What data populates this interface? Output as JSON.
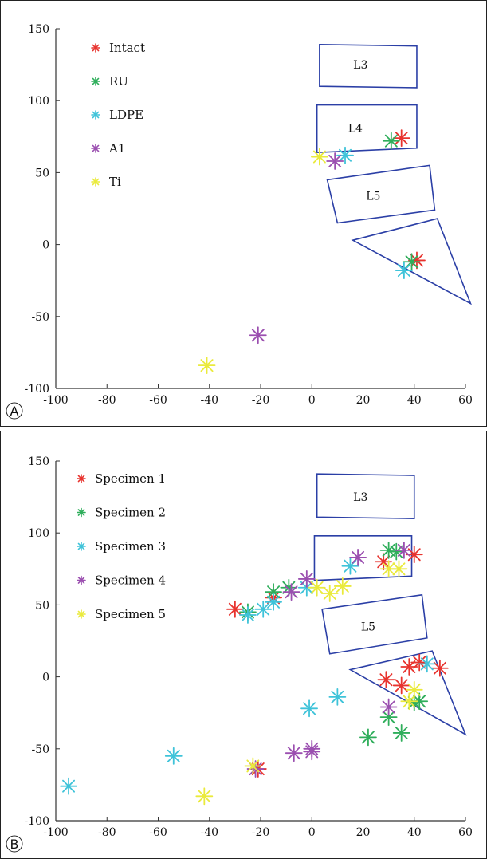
{
  "chart_data": [
    {
      "type": "scatter",
      "panel_label": "A",
      "xlim": [
        -100,
        60
      ],
      "ylim": [
        -100,
        150
      ],
      "xticks": [
        -100,
        -80,
        -60,
        -40,
        -20,
        0,
        20,
        40,
        60
      ],
      "yticks": [
        -100,
        -50,
        0,
        50,
        100,
        150
      ],
      "legend_placement": "top-left",
      "marker": "asterisk",
      "regions": [
        {
          "label": "L3",
          "polygon": [
            [
              3,
              139
            ],
            [
              41,
              138
            ],
            [
              41,
              109
            ],
            [
              3,
              110
            ]
          ],
          "label_at": [
            19,
            125
          ]
        },
        {
          "label": "L4",
          "polygon": [
            [
              2,
              97
            ],
            [
              41,
              97
            ],
            [
              41,
              67
            ],
            [
              2,
              64
            ]
          ],
          "label_at": [
            17,
            81
          ]
        },
        {
          "label": "L5",
          "polygon": [
            [
              6,
              45
            ],
            [
              46,
              55
            ],
            [
              48,
              24
            ],
            [
              10,
              15
            ]
          ],
          "label_at": [
            24,
            34
          ]
        },
        {
          "label": "",
          "polygon": [
            [
              16,
              3
            ],
            [
              49,
              18
            ],
            [
              62,
              -41
            ]
          ],
          "label_at": null
        }
      ],
      "series": [
        {
          "name": "Intact",
          "color": "#e8332e",
          "points": [
            [
              35,
              74
            ],
            [
              41,
              -11
            ]
          ]
        },
        {
          "name": "RU",
          "color": "#2fae5b",
          "points": [
            [
              31,
              72
            ],
            [
              39,
              -12
            ]
          ]
        },
        {
          "name": "LDPE",
          "color": "#3fc3d9",
          "points": [
            [
              13,
              62
            ],
            [
              36,
              -18
            ]
          ]
        },
        {
          "name": "A1",
          "color": "#9b4fb0",
          "points": [
            [
              9,
              58
            ],
            [
              -21,
              -63
            ]
          ]
        },
        {
          "name": "Ti",
          "color": "#eaea3c",
          "points": [
            [
              3,
              61
            ],
            [
              -41,
              -84
            ]
          ]
        }
      ]
    },
    {
      "type": "scatter",
      "panel_label": "B",
      "xlim": [
        -100,
        60
      ],
      "ylim": [
        -100,
        150
      ],
      "xticks": [
        -100,
        -80,
        -60,
        -40,
        -20,
        0,
        20,
        40,
        60
      ],
      "yticks": [
        -100,
        -50,
        0,
        50,
        100,
        150
      ],
      "legend_placement": "top-left",
      "marker": "asterisk",
      "regions": [
        {
          "label": "L3",
          "polygon": [
            [
              2,
              141
            ],
            [
              40,
              140
            ],
            [
              40,
              110
            ],
            [
              2,
              111
            ]
          ],
          "label_at": [
            19,
            125
          ]
        },
        {
          "label": "",
          "polygon": [
            [
              1,
              98
            ],
            [
              39,
              98
            ],
            [
              39,
              70
            ],
            [
              1,
              67
            ]
          ],
          "label_at": null
        },
        {
          "label": "L5",
          "polygon": [
            [
              4,
              47
            ],
            [
              43,
              57
            ],
            [
              45,
              27
            ],
            [
              7,
              16
            ]
          ],
          "label_at": [
            22,
            35
          ]
        },
        {
          "label": "",
          "polygon": [
            [
              15,
              5
            ],
            [
              47,
              18
            ],
            [
              60,
              -40
            ]
          ],
          "label_at": null
        }
      ],
      "series": [
        {
          "name": "Specimen 1",
          "color": "#e8332e",
          "points": [
            [
              -30,
              47
            ],
            [
              -15,
              55
            ],
            [
              28,
              80
            ],
            [
              40,
              85
            ],
            [
              29,
              -2
            ],
            [
              35,
              -6
            ],
            [
              38,
              7
            ],
            [
              42,
              10
            ],
            [
              50,
              6
            ],
            [
              -21,
              -64
            ]
          ]
        },
        {
          "name": "Specimen 2",
          "color": "#2fae5b",
          "points": [
            [
              -25,
              45
            ],
            [
              -15,
              59
            ],
            [
              -9,
              62
            ],
            [
              30,
              88
            ],
            [
              33,
              87
            ],
            [
              40,
              -18
            ],
            [
              42,
              -17
            ],
            [
              30,
              -28
            ],
            [
              35,
              -39
            ],
            [
              22,
              -42
            ]
          ]
        },
        {
          "name": "Specimen 3",
          "color": "#3fc3d9",
          "points": [
            [
              -95,
              -76
            ],
            [
              -54,
              -55
            ],
            [
              -25,
              43
            ],
            [
              -19,
              47
            ],
            [
              -15,
              52
            ],
            [
              -2,
              62
            ],
            [
              -1,
              -22
            ],
            [
              10,
              -14
            ],
            [
              15,
              77
            ],
            [
              45,
              9
            ]
          ]
        },
        {
          "name": "Specimen 4",
          "color": "#9b4fb0",
          "points": [
            [
              -22,
              -64
            ],
            [
              -7,
              -53
            ],
            [
              0,
              -50
            ],
            [
              0,
              -52
            ],
            [
              -8,
              59
            ],
            [
              -2,
              68
            ],
            [
              18,
              83
            ],
            [
              36,
              88
            ],
            [
              30,
              -21
            ]
          ]
        },
        {
          "name": "Specimen 5",
          "color": "#eaea3c",
          "points": [
            [
              -42,
              -83
            ],
            [
              -23,
              -62
            ],
            [
              2,
              62
            ],
            [
              7,
              58
            ],
            [
              12,
              63
            ],
            [
              30,
              75
            ],
            [
              34,
              75
            ],
            [
              40,
              -9
            ],
            [
              38,
              -17
            ]
          ]
        }
      ]
    }
  ]
}
